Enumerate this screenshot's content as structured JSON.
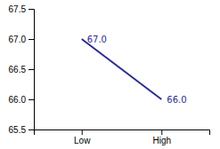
{
  "chart_data": {
    "type": "line",
    "categories": [
      "Low",
      "High"
    ],
    "values": [
      67.0,
      66.0
    ],
    "value_labels": [
      "67.0",
      "66.0"
    ],
    "data_labels": true,
    "color": "#2b2b8f",
    "ylim": [
      65.5,
      67.5
    ],
    "yticks": [
      65.5,
      {
        "value": 66.0,
        "label": "66.0"
      },
      66.5,
      {
        "value": 67.0,
        "label": "67.0"
      },
      67.5
    ]
  }
}
